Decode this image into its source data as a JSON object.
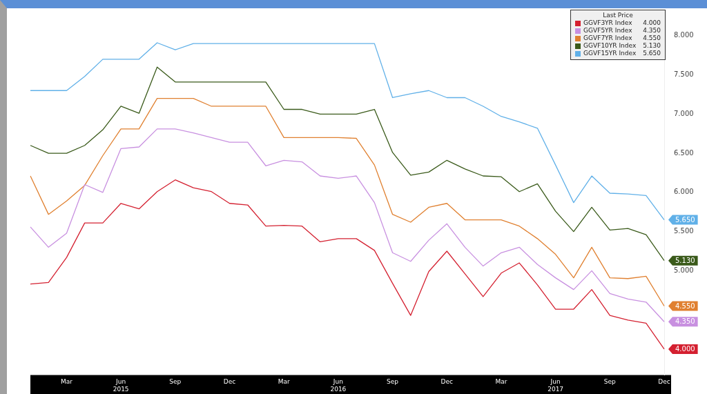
{
  "chart_data": {
    "type": "line",
    "categories": [
      null,
      null,
      "Mar",
      null,
      null,
      "Jun\n2015",
      null,
      null,
      "Sep",
      null,
      null,
      "Dec",
      null,
      null,
      "Mar",
      null,
      null,
      "Jun\n2016",
      null,
      null,
      "Sep",
      null,
      null,
      "Dec",
      null,
      null,
      "Mar",
      null,
      null,
      "Jun\n2017",
      null,
      null,
      "Sep",
      null,
      null,
      "Dec"
    ],
    "legend_title": "Last Price",
    "series": [
      {
        "name": "GGVF3YR Index",
        "color": "#d42030",
        "values": [
          4.83,
          4.85,
          5.17,
          5.61,
          5.61,
          5.86,
          5.79,
          6.01,
          6.16,
          6.06,
          6.01,
          5.86,
          5.84,
          5.57,
          5.58,
          5.57,
          5.37,
          5.41,
          5.41,
          5.26,
          4.84,
          4.43,
          4.99,
          5.25,
          4.96,
          4.67,
          4.97,
          5.1,
          4.82,
          4.51,
          4.51,
          4.76,
          4.43,
          4.37,
          4.33,
          4.0
        ],
        "value_labels": [
          null,
          null,
          null,
          null,
          null,
          null,
          null,
          null,
          null,
          null,
          null,
          null,
          null,
          null,
          null,
          null,
          null,
          null,
          null,
          null,
          null,
          null,
          null,
          null,
          null,
          null,
          null,
          null,
          null,
          null,
          null,
          null,
          null,
          null,
          null,
          "4.000"
        ]
      },
      {
        "name": "GGVF5YR Index",
        "color": "#c890e0",
        "values": [
          5.56,
          5.3,
          5.48,
          6.1,
          6.0,
          6.56,
          6.58,
          6.81,
          6.81,
          6.76,
          6.7,
          6.64,
          6.64,
          6.34,
          6.41,
          6.39,
          6.21,
          6.18,
          6.21,
          5.87,
          5.23,
          5.12,
          5.39,
          5.6,
          5.3,
          5.06,
          5.23,
          5.3,
          5.08,
          4.91,
          4.76,
          5.0,
          4.71,
          4.64,
          4.6,
          4.35
        ],
        "value_labels": [
          null,
          null,
          null,
          null,
          null,
          null,
          null,
          null,
          null,
          null,
          null,
          null,
          null,
          null,
          null,
          null,
          null,
          null,
          null,
          null,
          null,
          null,
          null,
          null,
          null,
          null,
          null,
          null,
          null,
          null,
          null,
          null,
          null,
          null,
          null,
          "4.350"
        ]
      },
      {
        "name": "GGVF7YR Index",
        "color": "#e08030",
        "values": [
          6.21,
          5.72,
          5.89,
          6.09,
          6.47,
          6.81,
          6.81,
          7.2,
          7.2,
          7.2,
          7.1,
          7.1,
          7.1,
          7.1,
          6.7,
          6.7,
          6.7,
          6.7,
          6.69,
          6.35,
          5.72,
          5.62,
          5.81,
          5.86,
          5.65,
          5.65,
          5.65,
          5.57,
          5.41,
          5.21,
          4.91,
          5.3,
          4.91,
          4.9,
          4.93,
          4.55
        ],
        "value_labels": [
          null,
          null,
          null,
          null,
          null,
          null,
          null,
          null,
          null,
          null,
          null,
          null,
          null,
          null,
          null,
          null,
          null,
          null,
          null,
          null,
          null,
          null,
          null,
          null,
          null,
          null,
          null,
          null,
          null,
          null,
          null,
          null,
          null,
          null,
          null,
          "4.550"
        ]
      },
      {
        "name": "GGVF10YR Index",
        "color": "#3a5a1a",
        "values": [
          6.6,
          6.5,
          6.5,
          6.6,
          6.8,
          7.1,
          7.01,
          7.6,
          7.41,
          7.41,
          7.41,
          7.41,
          7.41,
          7.41,
          7.06,
          7.06,
          7.0,
          7.0,
          7.0,
          7.06,
          6.51,
          6.22,
          6.26,
          6.41,
          6.3,
          6.21,
          6.2,
          6.01,
          6.11,
          5.76,
          5.5,
          5.81,
          5.52,
          5.54,
          5.46,
          5.13
        ],
        "value_labels": [
          null,
          null,
          null,
          null,
          null,
          null,
          null,
          null,
          null,
          null,
          null,
          null,
          null,
          null,
          null,
          null,
          null,
          null,
          null,
          null,
          null,
          null,
          null,
          null,
          null,
          null,
          null,
          null,
          null,
          null,
          null,
          null,
          null,
          null,
          null,
          "5.130"
        ]
      },
      {
        "name": "GGVF15YR Index",
        "color": "#60b0e8",
        "values": [
          7.3,
          7.3,
          7.3,
          7.48,
          7.7,
          7.7,
          7.7,
          7.91,
          7.82,
          7.9,
          7.9,
          7.9,
          7.9,
          7.9,
          7.9,
          7.9,
          7.9,
          7.9,
          7.9,
          7.9,
          7.21,
          7.26,
          7.3,
          7.21,
          7.21,
          7.1,
          6.97,
          6.9,
          6.82,
          6.35,
          5.87,
          6.21,
          5.99,
          5.98,
          5.96,
          5.65
        ],
        "value_labels": [
          null,
          null,
          null,
          null,
          null,
          null,
          null,
          null,
          null,
          null,
          null,
          null,
          null,
          null,
          null,
          null,
          null,
          null,
          null,
          null,
          null,
          null,
          null,
          null,
          null,
          null,
          null,
          null,
          null,
          null,
          null,
          null,
          null,
          null,
          null,
          "5.650"
        ]
      }
    ],
    "ylim": [
      3.67,
      8.28
    ],
    "yticks": [
      {
        "value": 5,
        "label": "5.000"
      },
      {
        "value": 5.5,
        "label": "5.500"
      },
      {
        "value": 6,
        "label": "6.000"
      },
      {
        "value": 6.5,
        "label": "6.500"
      },
      {
        "value": 7,
        "label": "7.000"
      },
      {
        "value": 7.5,
        "label": "7.500"
      },
      {
        "value": 8,
        "label": "8.000"
      }
    ],
    "grid": false,
    "legend": "top right",
    "marker": "none",
    "line_style": "solid"
  }
}
